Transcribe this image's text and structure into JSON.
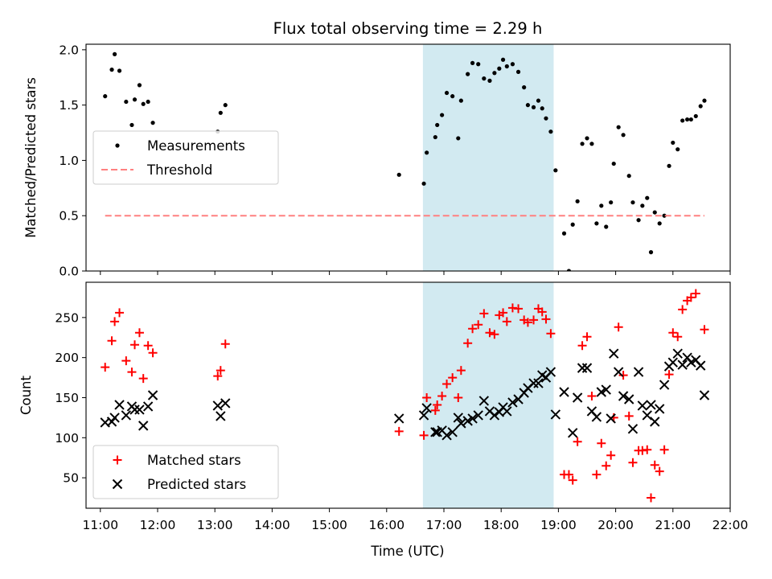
{
  "chart_data": [
    {
      "type": "scatter",
      "title": "Flux total observing time = 2.29 h",
      "ylabel": "Matched/Predicted stars",
      "xlabel": "",
      "xlim": [
        "10:45",
        "22:00"
      ],
      "ylim": [
        0,
        2.05
      ],
      "yticks": [
        "0.0",
        "0.5",
        "1.0",
        "1.5",
        "2.0"
      ],
      "highlight_span": {
        "from": "16:38",
        "to": "18:55",
        "color": "#add8e6"
      },
      "legend": {
        "position": "center-left",
        "entries": [
          "Measurements",
          "Threshold"
        ]
      },
      "series": [
        {
          "name": "Measurements",
          "marker": "dot",
          "color": "#000000",
          "points": [
            [
              "11:05",
              1.58
            ],
            [
              "11:12",
              1.82
            ],
            [
              "11:15",
              1.96
            ],
            [
              "11:20",
              1.81
            ],
            [
              "11:27",
              1.53
            ],
            [
              "11:33",
              1.32
            ],
            [
              "11:36",
              1.55
            ],
            [
              "11:41",
              1.68
            ],
            [
              "11:45",
              1.51
            ],
            [
              "11:50",
              1.53
            ],
            [
              "11:55",
              1.34
            ],
            [
              "13:03",
              1.26
            ],
            [
              "13:06",
              1.43
            ],
            [
              "13:11",
              1.5
            ],
            [
              "16:13",
              0.87
            ],
            [
              "16:39",
              0.79
            ],
            [
              "16:42",
              1.07
            ],
            [
              "16:51",
              1.21
            ],
            [
              "16:53",
              1.32
            ],
            [
              "16:58",
              1.41
            ],
            [
              "17:03",
              1.61
            ],
            [
              "17:09",
              1.58
            ],
            [
              "17:15",
              1.2
            ],
            [
              "17:18",
              1.54
            ],
            [
              "17:25",
              1.78
            ],
            [
              "17:30",
              1.88
            ],
            [
              "17:36",
              1.87
            ],
            [
              "17:42",
              1.74
            ],
            [
              "17:48",
              1.72
            ],
            [
              "17:53",
              1.79
            ],
            [
              "17:58",
              1.83
            ],
            [
              "18:02",
              1.91
            ],
            [
              "18:06",
              1.85
            ],
            [
              "18:12",
              1.87
            ],
            [
              "18:18",
              1.8
            ],
            [
              "18:24",
              1.66
            ],
            [
              "18:28",
              1.5
            ],
            [
              "18:34",
              1.48
            ],
            [
              "18:39",
              1.54
            ],
            [
              "18:43",
              1.47
            ],
            [
              "18:47",
              1.38
            ],
            [
              "18:52",
              1.26
            ],
            [
              "18:57",
              0.91
            ],
            [
              "19:06",
              0.34
            ],
            [
              "19:11",
              0.0
            ],
            [
              "19:15",
              0.42
            ],
            [
              "19:20",
              0.63
            ],
            [
              "19:25",
              1.15
            ],
            [
              "19:30",
              1.2
            ],
            [
              "19:35",
              1.15
            ],
            [
              "19:40",
              0.43
            ],
            [
              "19:45",
              0.59
            ],
            [
              "19:50",
              0.4
            ],
            [
              "19:55",
              0.62
            ],
            [
              "19:58",
              0.97
            ],
            [
              "20:03",
              1.3
            ],
            [
              "20:08",
              1.23
            ],
            [
              "20:14",
              0.86
            ],
            [
              "20:18",
              0.62
            ],
            [
              "20:24",
              0.46
            ],
            [
              "20:28",
              0.59
            ],
            [
              "20:33",
              0.66
            ],
            [
              "20:37",
              0.17
            ],
            [
              "20:41",
              0.53
            ],
            [
              "20:46",
              0.43
            ],
            [
              "20:51",
              0.5
            ],
            [
              "20:56",
              0.95
            ],
            [
              "21:00",
              1.16
            ],
            [
              "21:05",
              1.1
            ],
            [
              "21:10",
              1.36
            ],
            [
              "21:15",
              1.37
            ],
            [
              "21:19",
              1.37
            ],
            [
              "21:24",
              1.4
            ],
            [
              "21:29",
              1.49
            ],
            [
              "21:33",
              1.54
            ]
          ]
        },
        {
          "name": "Threshold",
          "marker": "dashed-line",
          "color": "#ff8080",
          "points": [
            [
              "11:05",
              0.5
            ],
            [
              "21:33",
              0.5
            ]
          ]
        }
      ]
    },
    {
      "type": "scatter",
      "title": "",
      "ylabel": "Count",
      "xlabel": "Time (UTC)",
      "xlim": [
        "10:45",
        "22:00"
      ],
      "ylim": [
        12,
        294
      ],
      "yticks": [
        "50",
        "100",
        "150",
        "200",
        "250"
      ],
      "xticks": [
        "11:00",
        "12:00",
        "13:00",
        "14:00",
        "15:00",
        "16:00",
        "17:00",
        "18:00",
        "19:00",
        "20:00",
        "21:00",
        "22:00"
      ],
      "highlight_span": {
        "from": "16:38",
        "to": "18:55",
        "color": "#add8e6"
      },
      "legend": {
        "position": "lower-left",
        "entries": [
          "Matched stars",
          "Predicted stars"
        ]
      },
      "series": [
        {
          "name": "Matched stars",
          "marker": "plus",
          "color": "#ff0000",
          "points": [
            [
              "11:05",
              188
            ],
            [
              "11:12",
              221
            ],
            [
              "11:15",
              245
            ],
            [
              "11:20",
              256
            ],
            [
              "11:27",
              196
            ],
            [
              "11:33",
              182
            ],
            [
              "11:36",
              216
            ],
            [
              "11:41",
              231
            ],
            [
              "11:45",
              174
            ],
            [
              "11:50",
              215
            ],
            [
              "11:55",
              206
            ],
            [
              "13:03",
              177
            ],
            [
              "13:06",
              184
            ],
            [
              "13:11",
              217
            ],
            [
              "16:13",
              108
            ],
            [
              "16:39",
              103
            ],
            [
              "16:42",
              150
            ],
            [
              "16:51",
              134
            ],
            [
              "16:53",
              141
            ],
            [
              "16:58",
              152
            ],
            [
              "17:03",
              167
            ],
            [
              "17:09",
              175
            ],
            [
              "17:15",
              150
            ],
            [
              "17:18",
              184
            ],
            [
              "17:25",
              218
            ],
            [
              "17:30",
              236
            ],
            [
              "17:36",
              241
            ],
            [
              "17:42",
              255
            ],
            [
              "17:48",
              231
            ],
            [
              "17:53",
              229
            ],
            [
              "17:58",
              253
            ],
            [
              "18:02",
              256
            ],
            [
              "18:06",
              245
            ],
            [
              "18:12",
              262
            ],
            [
              "18:18",
              261
            ],
            [
              "18:24",
              247
            ],
            [
              "18:28",
              244
            ],
            [
              "18:34",
              247
            ],
            [
              "18:39",
              261
            ],
            [
              "18:43",
              257
            ],
            [
              "18:47",
              248
            ],
            [
              "18:52",
              230
            ],
            [
              "19:06",
              54
            ],
            [
              "19:11",
              54
            ],
            [
              "19:15",
              47
            ],
            [
              "19:20",
              95
            ],
            [
              "19:25",
              215
            ],
            [
              "19:30",
              226
            ],
            [
              "19:35",
              152
            ],
            [
              "19:40",
              54
            ],
            [
              "19:45",
              93
            ],
            [
              "19:50",
              65
            ],
            [
              "19:55",
              78
            ],
            [
              "19:58",
              125
            ],
            [
              "20:03",
              238
            ],
            [
              "20:08",
              178
            ],
            [
              "20:14",
              127
            ],
            [
              "20:18",
              69
            ],
            [
              "20:24",
              84
            ],
            [
              "20:28",
              84
            ],
            [
              "20:33",
              85
            ],
            [
              "20:37",
              25
            ],
            [
              "20:41",
              66
            ],
            [
              "20:46",
              58
            ],
            [
              "20:51",
              85
            ],
            [
              "20:56",
              179
            ],
            [
              "21:00",
              231
            ],
            [
              "21:05",
              226
            ],
            [
              "21:10",
              260
            ],
            [
              "21:15",
              271
            ],
            [
              "21:19",
              275
            ],
            [
              "21:24",
              280
            ],
            [
              "21:33",
              235
            ]
          ]
        },
        {
          "name": "Predicted stars",
          "marker": "x",
          "color": "#000000",
          "points": [
            [
              "11:05",
              119
            ],
            [
              "11:12",
              120
            ],
            [
              "11:15",
              125
            ],
            [
              "11:20",
              141
            ],
            [
              "11:27",
              128
            ],
            [
              "11:33",
              139
            ],
            [
              "11:36",
              135
            ],
            [
              "11:41",
              135
            ],
            [
              "11:45",
              115
            ],
            [
              "11:50",
              139
            ],
            [
              "11:55",
              153
            ],
            [
              "13:03",
              140
            ],
            [
              "13:06",
              127
            ],
            [
              "13:11",
              143
            ],
            [
              "16:13",
              124
            ],
            [
              "16:39",
              128
            ],
            [
              "16:42",
              137
            ],
            [
              "16:51",
              107
            ],
            [
              "16:53",
              107
            ],
            [
              "16:58",
              109
            ],
            [
              "17:03",
              103
            ],
            [
              "17:09",
              107
            ],
            [
              "17:15",
              125
            ],
            [
              "17:18",
              118
            ],
            [
              "17:25",
              121
            ],
            [
              "17:30",
              124
            ],
            [
              "17:36",
              128
            ],
            [
              "17:42",
              146
            ],
            [
              "17:48",
              133
            ],
            [
              "17:53",
              128
            ],
            [
              "17:58",
              132
            ],
            [
              "18:02",
              138
            ],
            [
              "18:06",
              133
            ],
            [
              "18:12",
              144
            ],
            [
              "18:18",
              148
            ],
            [
              "18:24",
              156
            ],
            [
              "18:28",
              162
            ],
            [
              "18:34",
              168
            ],
            [
              "18:39",
              168
            ],
            [
              "18:43",
              178
            ],
            [
              "18:47",
              175
            ],
            [
              "18:52",
              182
            ],
            [
              "18:57",
              129
            ],
            [
              "19:06",
              157
            ],
            [
              "19:15",
              106
            ],
            [
              "19:20",
              150
            ],
            [
              "19:25",
              187
            ],
            [
              "19:30",
              187
            ],
            [
              "19:35",
              133
            ],
            [
              "19:40",
              126
            ],
            [
              "19:45",
              157
            ],
            [
              "19:50",
              160
            ],
            [
              "19:55",
              124
            ],
            [
              "19:58",
              205
            ],
            [
              "20:03",
              182
            ],
            [
              "20:08",
              152
            ],
            [
              "20:14",
              148
            ],
            [
              "20:18",
              111
            ],
            [
              "20:24",
              182
            ],
            [
              "20:28",
              140
            ],
            [
              "20:33",
              128
            ],
            [
              "20:37",
              141
            ],
            [
              "20:41",
              120
            ],
            [
              "20:46",
              136
            ],
            [
              "20:51",
              166
            ],
            [
              "20:56",
              189
            ],
            [
              "21:00",
              194
            ],
            [
              "21:05",
              205
            ],
            [
              "21:10",
              191
            ],
            [
              "21:15",
              200
            ],
            [
              "21:19",
              194
            ],
            [
              "21:24",
              197
            ],
            [
              "21:29",
              190
            ],
            [
              "21:33",
              153
            ]
          ]
        }
      ]
    }
  ]
}
